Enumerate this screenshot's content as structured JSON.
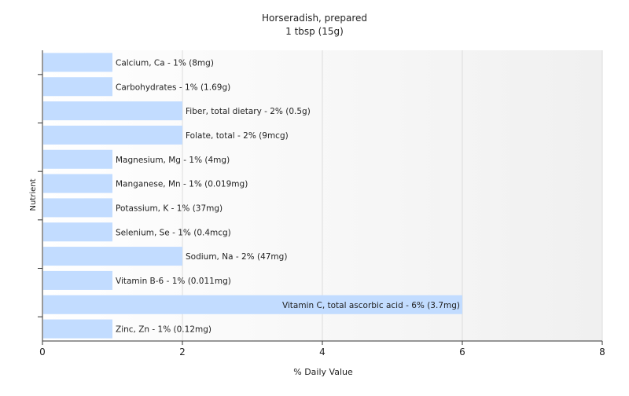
{
  "chart_data": {
    "type": "bar",
    "orientation": "horizontal",
    "title": "Horseradish, prepared",
    "subtitle": "1 tbsp (15g)",
    "xlabel": "% Daily Value",
    "ylabel": "Nutrient",
    "xlim": [
      0,
      8
    ],
    "xticks": [
      "0",
      "2",
      "4",
      "6",
      "8"
    ],
    "grid": true,
    "bar_color": "#c2dcff",
    "categories": [
      "Calcium, Ca",
      "Carbohydrates",
      "Fiber, total dietary",
      "Folate, total",
      "Magnesium, Mg",
      "Manganese, Mn",
      "Potassium, K",
      "Selenium, Se",
      "Sodium, Na",
      "Vitamin B-6",
      "Vitamin C, total ascorbic acid",
      "Zinc, Zn"
    ],
    "values": [
      1,
      1,
      2,
      2,
      1,
      1,
      1,
      1,
      2,
      1,
      6,
      1
    ],
    "labels": [
      "Calcium, Ca - 1% (8mg)",
      "Carbohydrates - 1% (1.69g)",
      "Fiber, total dietary - 2% (0.5g)",
      "Folate, total - 2% (9mcg)",
      "Magnesium, Mg - 1% (4mg)",
      "Manganese, Mn - 1% (0.019mg)",
      "Potassium, K - 1% (37mg)",
      "Selenium, Se - 1% (0.4mcg)",
      "Sodium, Na - 2% (47mg)",
      "Vitamin B-6 - 1% (0.011mg)",
      "Vitamin C, total ascorbic acid - 6% (3.7mg)",
      "Zinc, Zn - 1% (0.12mg)"
    ]
  }
}
